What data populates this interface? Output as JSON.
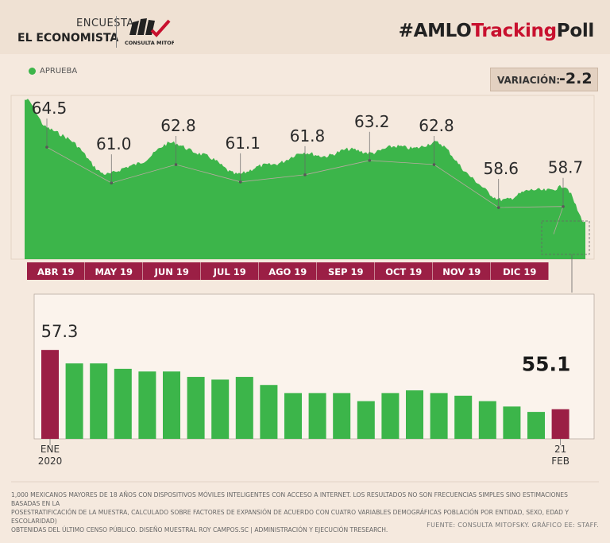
{
  "header": {
    "encuesta": "ENCUESTA",
    "economista": "EL ECONOMISTA",
    "logo_text": "CONSULTA MITOFSKY",
    "hashtag_prefix": "#AMLO",
    "hashtag_highlight": "Tracking",
    "hashtag_suffix": "Poll"
  },
  "colors": {
    "accent_green": "#3cb54a",
    "accent_maroon": "#9b1f45",
    "background": "#f5e9de"
  },
  "legend": {
    "label": "APRUEBA"
  },
  "variacion": {
    "label": "VARIACIÓN:",
    "value": "-2.2"
  },
  "chart_data": [
    {
      "type": "area",
      "series_name": "APRUEBA",
      "months": [
        "ABR 19",
        "MAY 19",
        "JUN 19",
        "JUL 19",
        "AGO 19",
        "SEP 19",
        "OCT 19",
        "NOV 19",
        "DIC 19"
      ],
      "labels": [
        {
          "value": 64.5,
          "label": "64.5"
        },
        {
          "value": 61.0,
          "label": "61.0"
        },
        {
          "value": 62.8,
          "label": "62.8"
        },
        {
          "value": 61.1,
          "label": "61.1"
        },
        {
          "value": 61.8,
          "label": "61.8"
        },
        {
          "value": 63.2,
          "label": "63.2"
        },
        {
          "value": 62.8,
          "label": "62.8"
        },
        {
          "value": 58.6,
          "label": "58.6"
        },
        {
          "value": 58.7,
          "label": "58.7"
        }
      ],
      "ylim": [
        52,
        68
      ]
    },
    {
      "type": "bar",
      "first_label": {
        "value_label": "57.3",
        "line1": "ENE",
        "line2": "2020"
      },
      "last_label": {
        "value_label": "55.1",
        "line1": "21",
        "line2": "FEB"
      },
      "values": [
        57.3,
        56.8,
        56.8,
        56.6,
        56.5,
        56.5,
        56.3,
        56.2,
        56.3,
        56.0,
        55.7,
        55.7,
        55.7,
        55.4,
        55.7,
        55.8,
        55.7,
        55.6,
        55.4,
        55.2,
        55.0,
        55.1
      ],
      "highlight_indices": [
        0,
        21
      ],
      "ylim": [
        54.0,
        57.6
      ]
    }
  ],
  "footer": {
    "note_line1": "1,000 MEXICANOS MAYORES DE 18 AÑOS CON DISPOSITIVOS MÓVILES INTELIGENTES CON ACCESO A INTERNET. LOS RESULTADOS NO SON FRECUENCIAS SIMPLES SINO ESTIMACIONES BASADAS EN LA",
    "note_line2": "POSESTRATIFICACIÓN DE LA MUESTRA, CALCULADO SOBRE FACTORES DE EXPANSIÓN DE ACUERDO CON CUATRO VARIABLES DEMOGRÁFICAS POBLACIÓN POR ENTIDAD, SEXO, EDAD Y ESCOLARIDAD)",
    "note_line3": "OBTENIDAS DEL ÚLTIMO CENSO PÚBLICO. DISEÑO MUESTRAL ROY CAMPOS.SC | ADMINISTRACIÓN Y EJECUCIÓN TRESEARCH.",
    "source": "FUENTE: CONSULTA MITOFSKY. GRÁFICO EE: STAFF."
  }
}
